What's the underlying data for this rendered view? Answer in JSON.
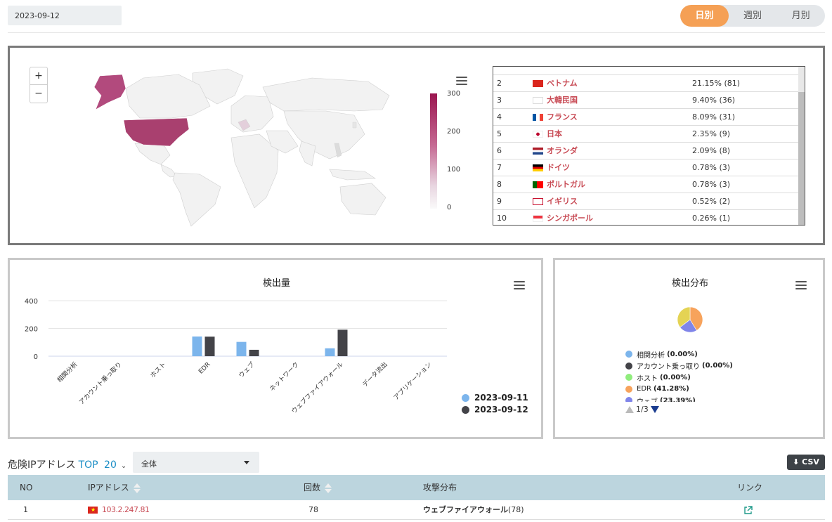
{
  "header": {
    "date": "2023-09-12",
    "period_options": [
      "日別",
      "週別",
      "月別"
    ],
    "active_period": "日別"
  },
  "map": {
    "zoom_in": "+",
    "zoom_out": "−",
    "legend_ticks": [
      "300",
      "200",
      "100",
      "0"
    ],
    "legend_colors": [
      "#9b1650",
      "#fafafa"
    ],
    "countries": [
      {
        "rank": "2",
        "name": "ベトナム",
        "value": "21.15% (81)",
        "flag": "vn"
      },
      {
        "rank": "3",
        "name": "大韓民国",
        "value": "9.40% (36)",
        "flag": "kr"
      },
      {
        "rank": "4",
        "name": "フランス",
        "value": "8.09% (31)",
        "flag": "fr"
      },
      {
        "rank": "5",
        "name": "日本",
        "value": "2.35% (9)",
        "flag": "jp"
      },
      {
        "rank": "6",
        "name": "オランダ",
        "value": "2.09% (8)",
        "flag": "nl"
      },
      {
        "rank": "7",
        "name": "ドイツ",
        "value": "0.78% (3)",
        "flag": "de"
      },
      {
        "rank": "8",
        "name": "ポルトガル",
        "value": "0.78% (3)",
        "flag": "pt"
      },
      {
        "rank": "9",
        "name": "イギリス",
        "value": "0.52% (2)",
        "flag": "gb"
      },
      {
        "rank": "10",
        "name": "シンガポール",
        "value": "0.26% (1)",
        "flag": "sg"
      }
    ]
  },
  "detection_volume": {
    "title": "検出量",
    "legend": [
      "2023-09-11",
      "2023-09-12"
    ]
  },
  "detection_distribution": {
    "title": "検出分布",
    "legend": [
      {
        "label": "相関分析",
        "value": "(0.00%)",
        "color": "#7cb5ec"
      },
      {
        "label": "アカウント乗っ取り",
        "value": "(0.00%)",
        "color": "#434348"
      },
      {
        "label": "ホスト",
        "value": "(0.00%)",
        "color": "#90ed7d"
      },
      {
        "label": "EDR",
        "value": "(41.28%)",
        "color": "#f7a35c"
      },
      {
        "label": "ウェブ",
        "value": "(23.39%)",
        "color": "#8085e9"
      }
    ],
    "pager": "1/3"
  },
  "chart_data": [
    {
      "type": "bar",
      "title": "検出量",
      "categories": [
        "相関分析",
        "アカウント乗っ取り",
        "ホスト",
        "EDR",
        "ウェブ",
        "ネットワーク",
        "ウェブファイアウォール",
        "データ流出",
        "アプリケーション"
      ],
      "series": [
        {
          "name": "2023-09-11",
          "color": "#7cb5ec",
          "values": [
            0,
            0,
            0,
            142,
            103,
            0,
            57,
            0,
            0
          ]
        },
        {
          "name": "2023-09-12",
          "color": "#434348",
          "values": [
            0,
            0,
            0,
            141,
            46,
            0,
            191,
            0,
            0
          ]
        }
      ],
      "yticks": [
        "400",
        "200",
        "0"
      ],
      "ylim": [
        0,
        400
      ],
      "legend_position": "bottom-right",
      "grid": true
    },
    {
      "type": "pie",
      "title": "検出分布",
      "slices": [
        {
          "label": "EDR",
          "value": 41.28,
          "color": "#f7a35c"
        },
        {
          "label": "ウェブ",
          "value": 23.39,
          "color": "#8085e9"
        },
        {
          "label": "other",
          "value": 35.33,
          "color": "#e4d354"
        }
      ]
    }
  ],
  "ip_section": {
    "title": "危険IPアドレス",
    "top_label": "TOP",
    "top_count": "20",
    "filter_value": "全体",
    "csv_label": "CSV",
    "headers": {
      "no": "NO",
      "ip": "IPアドレス",
      "count": "回数",
      "attack": "攻撃分布",
      "link": "リンク"
    },
    "rows": [
      {
        "no": "1",
        "ip": "103.2.247.81",
        "count": "78",
        "attack_name": "ウェブファイアウォール",
        "attack_count": "(78)"
      }
    ]
  },
  "colors": {
    "accent": "#f5a055",
    "link": "#1b8ec6",
    "country": "#c84a54"
  }
}
